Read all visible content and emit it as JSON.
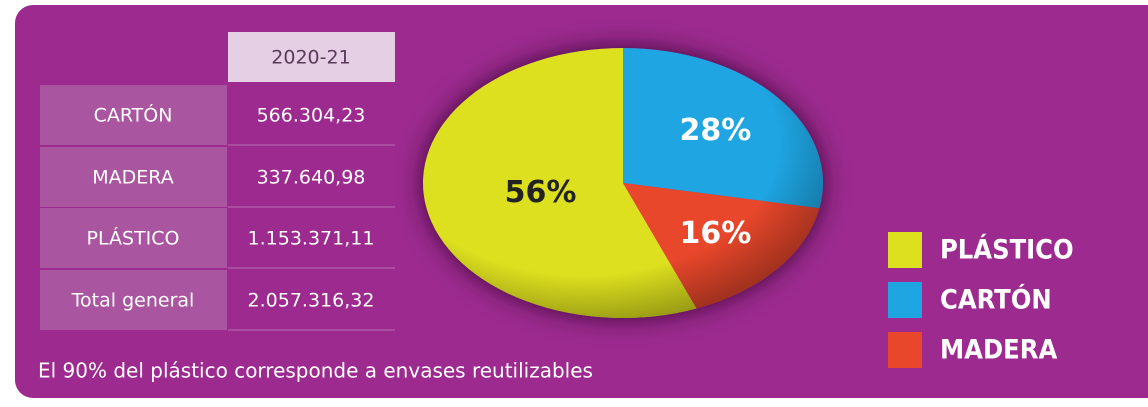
{
  "table": {
    "header": [
      "2020-21"
    ],
    "rows": [
      [
        "CARTÓN",
        "566.304,23"
      ],
      [
        "MADERA",
        "337.640,98"
      ],
      [
        "PLÁSTICO",
        "1.153.371,11"
      ],
      [
        "Total general",
        "2.057.316,32"
      ]
    ]
  },
  "chart_data": {
    "type": "pie",
    "categories": [
      "PLÁSTICO",
      "CARTÓN",
      "MADERA"
    ],
    "values": [
      56,
      28,
      16
    ],
    "value_labels": [
      "56%",
      "28%",
      "16%"
    ],
    "colors": [
      "#dde01e",
      "#1ea5e2",
      "#e9472b"
    ],
    "label_colors": [
      "#222222",
      "#ffffff",
      "#ffffff"
    ]
  },
  "note": "El 90% del plástico corresponde a envases reutilizables"
}
